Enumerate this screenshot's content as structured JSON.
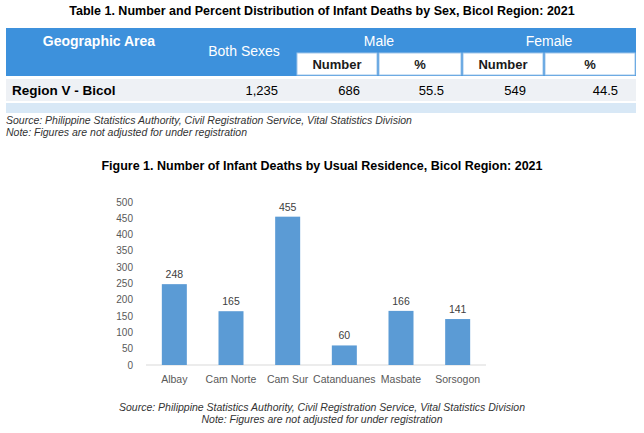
{
  "table": {
    "title": "Table 1. Number and Percent Distribution of Infant Deaths by Sex, Bicol Region: 2021",
    "header": {
      "geographic_area": "Geographic Area",
      "both_sexes": "Both Sexes",
      "groups": [
        "Male",
        "Female"
      ],
      "subheaders": [
        "Number",
        "%",
        "Number",
        "%"
      ]
    },
    "rows": [
      [
        "Region V - Bicol",
        "1,235",
        "686",
        "55.5",
        "549",
        "44.5"
      ]
    ],
    "source": "Source: Philippine Statistics Authority, Civil Registration Service, Vital Statistics Division",
    "note": "Note: Figures are not adjusted for under registration"
  },
  "chart_data": {
    "type": "bar",
    "title": "Figure 1.  Number of Infant Deaths by Usual Residence, Bicol Region: 2021",
    "categories": [
      "Albay",
      "Cam Norte",
      "Cam Sur",
      "Catanduanes",
      "Masbate",
      "Sorsogon"
    ],
    "values": [
      248,
      165,
      455,
      60,
      166,
      141
    ],
    "color": "#5b9bd5",
    "ylim": [
      0,
      500
    ],
    "yticks": [
      0,
      50,
      100,
      150,
      200,
      250,
      300,
      350,
      400,
      450,
      500
    ],
    "grid": false,
    "data_labels": true,
    "annotations": [
      "Source: Philippine Statistics Authority, Civil Registration Service, Vital Statistics Division",
      "Note: Figures are not adjusted for under registration"
    ]
  }
}
